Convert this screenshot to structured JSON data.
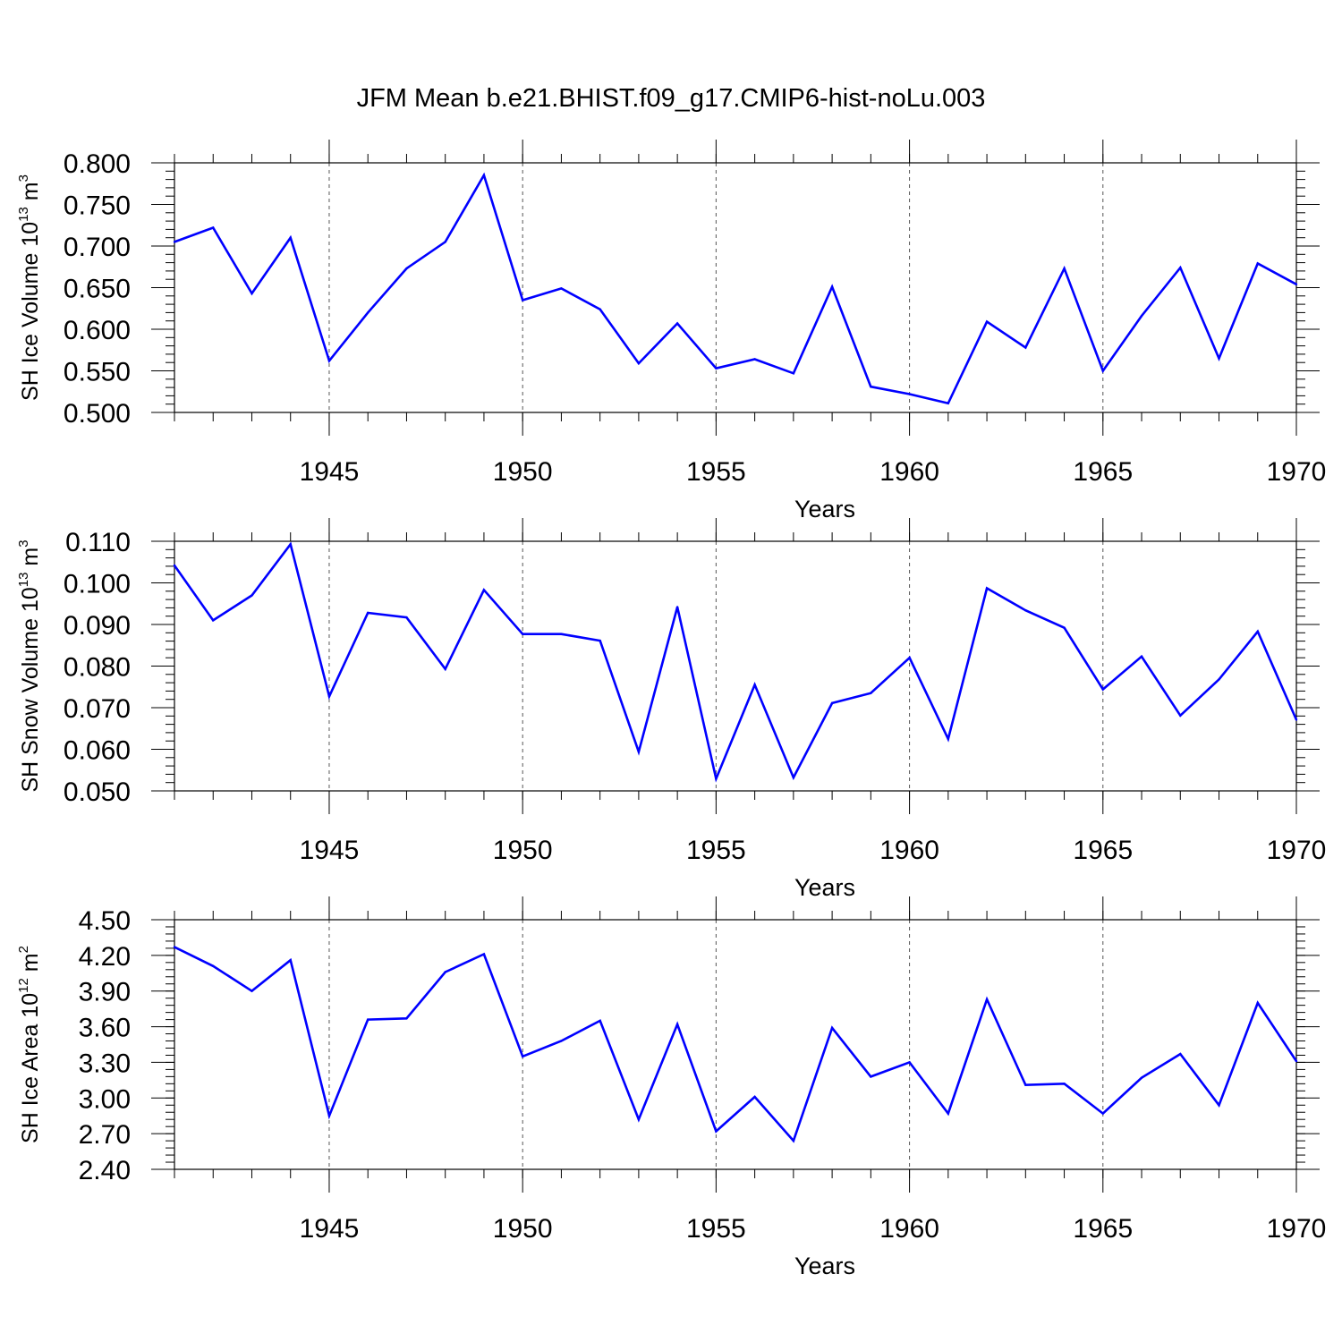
{
  "figure_title": "JFM Mean b.e21.BHIST.f09_g17.CMIP6-hist-noLu.003",
  "chart_data": [
    {
      "type": "line",
      "title": "JFM Mean b.e21.BHIST.f09_g17.CMIP6-hist-noLu.003",
      "ylabel_main": "SH Ice Volume 10",
      "ylabel_exp": "13",
      "ylabel_unit": " m",
      "ylabel_unit_exp": "3",
      "xlabel": "Years",
      "xlim": [
        1941,
        1970
      ],
      "ylim": [
        0.5,
        0.8
      ],
      "yticks": [
        "0.500",
        "0.550",
        "0.600",
        "0.650",
        "0.700",
        "0.750",
        "0.800"
      ],
      "yticks_values": [
        0.5,
        0.55,
        0.6,
        0.65,
        0.7,
        0.75,
        0.8
      ],
      "xticks": [
        1945,
        1950,
        1955,
        1960,
        1965,
        1970
      ],
      "line_color": "#0000ff",
      "x": [
        1941,
        1942,
        1943,
        1944,
        1945,
        1946,
        1947,
        1948,
        1949,
        1950,
        1951,
        1952,
        1953,
        1954,
        1955,
        1956,
        1957,
        1958,
        1959,
        1960,
        1961,
        1962,
        1963,
        1964,
        1965,
        1966,
        1967,
        1968,
        1969,
        1970
      ],
      "values": [
        0.705,
        0.722,
        0.643,
        0.71,
        0.562,
        0.62,
        0.673,
        0.705,
        0.785,
        0.635,
        0.649,
        0.624,
        0.559,
        0.607,
        0.553,
        0.564,
        0.547,
        0.651,
        0.531,
        0.522,
        0.511,
        0.609,
        0.578,
        0.673,
        0.55,
        0.616,
        0.674,
        0.565,
        0.679,
        0.654
      ]
    },
    {
      "type": "line",
      "ylabel_main": "SH Snow Volume 10",
      "ylabel_exp": "13",
      "ylabel_unit": " m",
      "ylabel_unit_exp": "3",
      "xlabel": "Years",
      "xlim": [
        1941,
        1970
      ],
      "ylim": [
        0.05,
        0.11
      ],
      "yticks": [
        "0.050",
        "0.060",
        "0.070",
        "0.080",
        "0.090",
        "0.100",
        "0.110"
      ],
      "yticks_values": [
        0.05,
        0.06,
        0.07,
        0.08,
        0.09,
        0.1,
        0.11
      ],
      "xticks": [
        1945,
        1950,
        1955,
        1960,
        1965,
        1970
      ],
      "line_color": "#0000ff",
      "x": [
        1941,
        1942,
        1943,
        1944,
        1945,
        1946,
        1947,
        1948,
        1949,
        1950,
        1951,
        1952,
        1953,
        1954,
        1955,
        1956,
        1957,
        1958,
        1959,
        1960,
        1961,
        1962,
        1963,
        1964,
        1965,
        1966,
        1967,
        1968,
        1969,
        1970
      ],
      "values": [
        0.1042,
        0.091,
        0.097,
        0.1093,
        0.0727,
        0.0928,
        0.0917,
        0.0793,
        0.0983,
        0.0877,
        0.0877,
        0.0861,
        0.0594,
        0.0942,
        0.0529,
        0.0755,
        0.0532,
        0.0711,
        0.0735,
        0.082,
        0.0625,
        0.0987,
        0.0934,
        0.0892,
        0.0744,
        0.0823,
        0.0681,
        0.0768,
        0.0883,
        0.0671
      ]
    },
    {
      "type": "line",
      "ylabel_main": "SH Ice Area 10",
      "ylabel_exp": "12",
      "ylabel_unit": " m",
      "ylabel_unit_exp": "2",
      "xlabel": "Years",
      "xlim": [
        1941,
        1970
      ],
      "ylim": [
        2.4,
        4.5
      ],
      "yticks": [
        "2.40",
        "2.70",
        "3.00",
        "3.30",
        "3.60",
        "3.90",
        "4.20",
        "4.50"
      ],
      "yticks_values": [
        2.4,
        2.7,
        3.0,
        3.3,
        3.6,
        3.9,
        4.2,
        4.5
      ],
      "xticks": [
        1945,
        1950,
        1955,
        1960,
        1965,
        1970
      ],
      "line_color": "#0000ff",
      "x": [
        1941,
        1942,
        1943,
        1944,
        1945,
        1946,
        1947,
        1948,
        1949,
        1950,
        1951,
        1952,
        1953,
        1954,
        1955,
        1956,
        1957,
        1958,
        1959,
        1960,
        1961,
        1962,
        1963,
        1964,
        1965,
        1966,
        1967,
        1968,
        1969,
        1970
      ],
      "values": [
        4.27,
        4.11,
        3.9,
        4.16,
        2.85,
        3.66,
        3.67,
        4.06,
        4.21,
        3.35,
        3.48,
        3.65,
        2.82,
        3.62,
        2.72,
        3.01,
        2.64,
        3.59,
        3.18,
        3.3,
        2.87,
        3.83,
        3.11,
        3.12,
        2.87,
        3.17,
        3.37,
        2.94,
        3.8,
        3.31
      ]
    }
  ]
}
